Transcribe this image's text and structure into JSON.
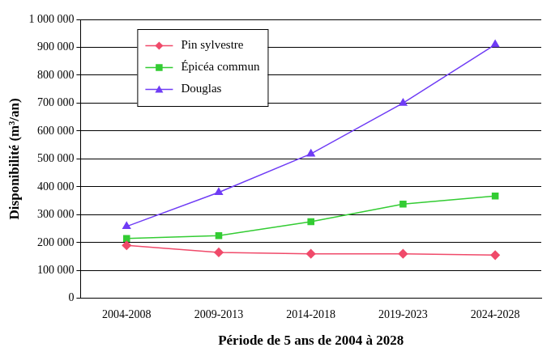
{
  "chart_data": {
    "type": "line",
    "x_label": "Période de 5 ans de 2004 à 2028",
    "y_label": "Disponibilité (m³/an)",
    "categories": [
      "2004-2008",
      "2009-2013",
      "2014-2018",
      "2019-2023",
      "2024-2028"
    ],
    "series": [
      {
        "name": "Pin sylvestre",
        "color": "#f04a6a",
        "marker": "diamond",
        "values": [
          190000,
          165000,
          160000,
          160000,
          155000
        ]
      },
      {
        "name": "Épicéa commun",
        "color": "#33cc33",
        "marker": "square",
        "values": [
          215000,
          225000,
          275000,
          338000,
          367000
        ]
      },
      {
        "name": "Douglas",
        "color": "#6f3cf5",
        "marker": "triangle",
        "values": [
          258000,
          380000,
          518000,
          700000,
          910000
        ]
      }
    ],
    "ylim": [
      0,
      1000000
    ],
    "yticks": [
      0,
      {
        "value": 100000,
        "label": "100 000"
      },
      {
        "value": 200000,
        "label": "200 000"
      },
      {
        "value": 300000,
        "label": "300 000"
      },
      {
        "value": 400000,
        "label": "400 000"
      },
      {
        "value": 500000,
        "label": "500 000"
      },
      {
        "value": 600000,
        "label": "600 000"
      },
      {
        "value": 700000,
        "label": "700 000"
      },
      {
        "value": 800000,
        "label": "800 000"
      },
      {
        "value": 900000,
        "label": "900 000"
      },
      {
        "value": 1000000,
        "label": "1 000 000"
      }
    ],
    "grid": true,
    "legend": "upper left"
  }
}
